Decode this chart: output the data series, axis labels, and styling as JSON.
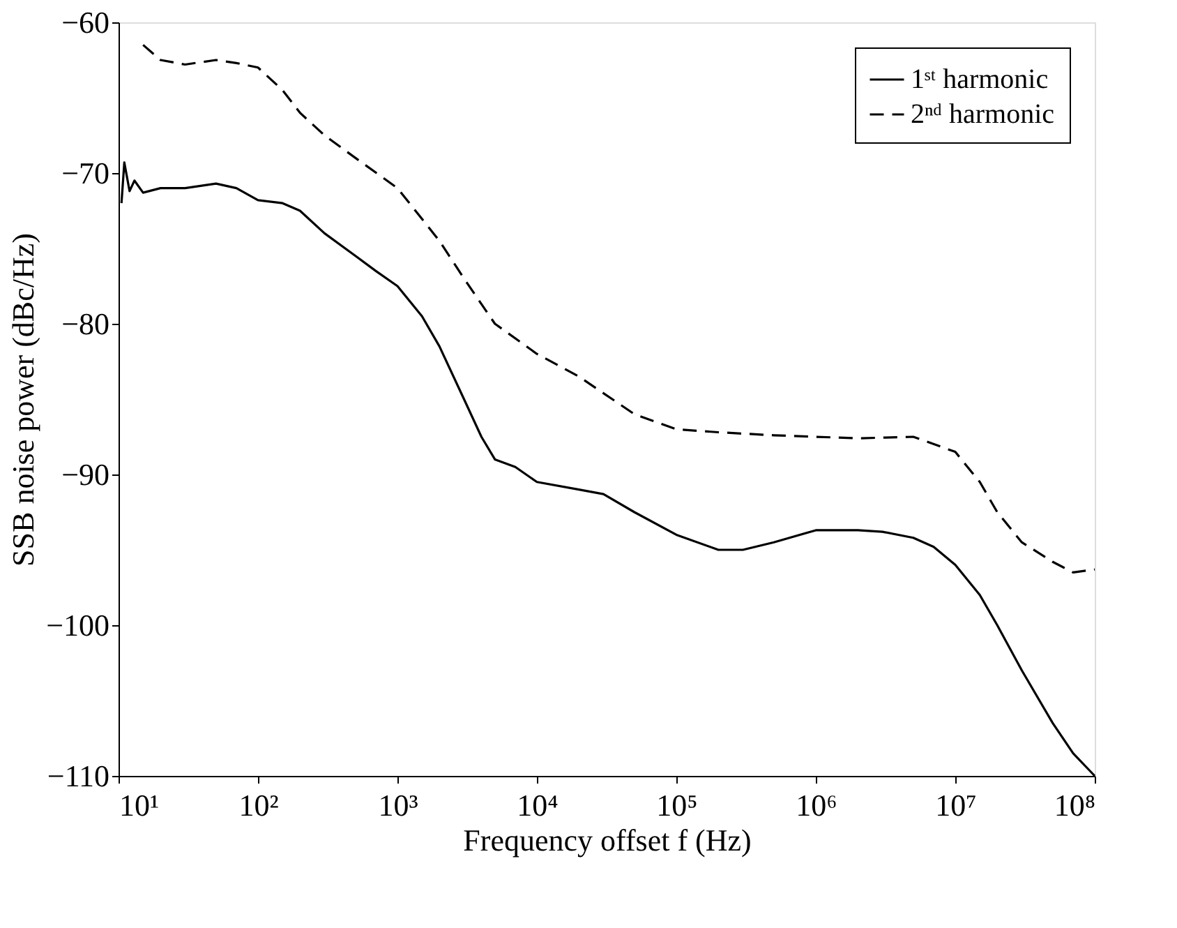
{
  "chart_data": {
    "type": "line",
    "xlabel": "Frequency offset f (Hz)",
    "ylabel": "SSB noise power (dBc/Hz)",
    "log": "x",
    "xlim": [
      10,
      100000000
    ],
    "xticks": [
      {
        "value": 10,
        "label": "10¹"
      },
      {
        "value": 100,
        "label": "10²"
      },
      {
        "value": 1000,
        "label": "10³"
      },
      {
        "value": 10000,
        "label": "10⁴"
      },
      {
        "value": 100000,
        "label": "10⁵"
      },
      {
        "value": 1000000,
        "label": "10⁶"
      },
      {
        "value": 10000000,
        "label": "10⁷"
      },
      {
        "value": 100000000,
        "label": "10⁸"
      }
    ],
    "ylim": [
      -110,
      -60
    ],
    "yticks": [
      {
        "value": -110,
        "label": "−110"
      },
      {
        "value": -100,
        "label": "−100"
      },
      {
        "value": -90,
        "label": "−90"
      },
      {
        "value": -80,
        "label": "−80"
      },
      {
        "value": -70,
        "label": "−70"
      },
      {
        "value": -60,
        "label": "−60"
      }
    ],
    "grid": false,
    "legend": "top right",
    "marker": "none",
    "series": [
      {
        "name": "1ˢᵗ harmonic",
        "color": "#000000",
        "line_style": "solid",
        "x": [
          10.5,
          11,
          12,
          13,
          15,
          20,
          30,
          50,
          70,
          100,
          150,
          200,
          300,
          500,
          700,
          1000,
          1500,
          2000,
          3000,
          4000,
          5000,
          7000,
          10000,
          20000,
          30000,
          50000,
          100000,
          200000,
          300000,
          500000,
          1000000,
          2000000,
          3000000,
          5000000,
          7000000,
          10000000,
          15000000,
          20000000,
          30000000,
          50000000,
          70000000,
          100000000
        ],
        "values": [
          -72,
          -69.3,
          -71.2,
          -70.5,
          -71.3,
          -71,
          -71,
          -70.7,
          -71,
          -71.8,
          -72,
          -72.5,
          -74,
          -75.5,
          -76.5,
          -77.5,
          -79.5,
          -81.5,
          -85,
          -87.5,
          -89,
          -89.5,
          -90.5,
          -91,
          -91.3,
          -92.5,
          -94,
          -95,
          -95,
          -94.5,
          -93.7,
          -93.7,
          -93.8,
          -94.2,
          -94.8,
          -96,
          -98,
          -100,
          -103,
          -106.5,
          -108.5,
          -110
        ]
      },
      {
        "name": "2ⁿᵈ harmonic",
        "color": "#000000",
        "line_style": "dashed",
        "x": [
          15,
          20,
          30,
          50,
          70,
          100,
          150,
          200,
          300,
          500,
          1000,
          2000,
          3000,
          5000,
          10000,
          20000,
          50000,
          100000,
          200000,
          500000,
          1000000,
          2000000,
          5000000,
          10000000,
          15000000,
          20000000,
          30000000,
          50000000,
          70000000,
          100000000
        ],
        "values": [
          -61.5,
          -62.5,
          -62.8,
          -62.5,
          -62.7,
          -63,
          -64.5,
          -66,
          -67.5,
          -69,
          -71,
          -74.5,
          -77,
          -80,
          -82,
          -83.5,
          -86,
          -87,
          -87.2,
          -87.4,
          -87.5,
          -87.6,
          -87.5,
          -88.5,
          -90.5,
          -92.5,
          -94.5,
          -95.8,
          -96.5,
          -96.3
        ]
      }
    ]
  }
}
